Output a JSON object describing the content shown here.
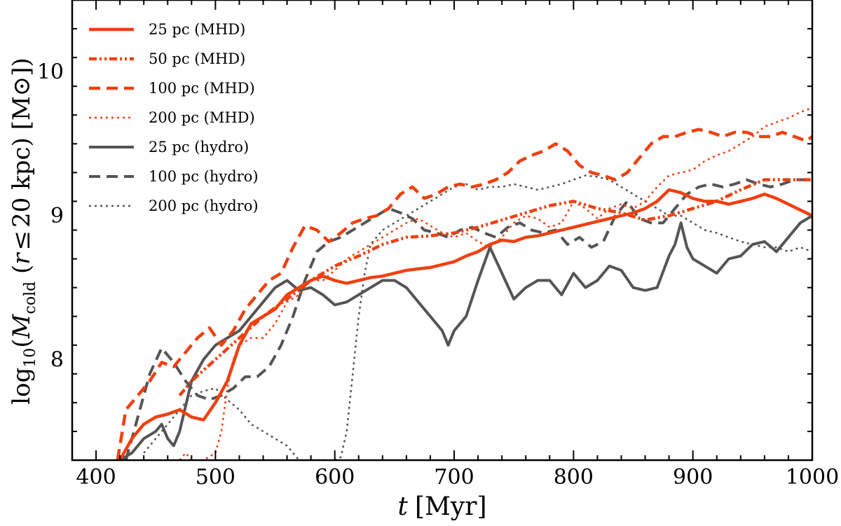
{
  "chart_data": {
    "type": "line",
    "xlabel": "t [Myr]",
    "xlabel_parts": {
      "var": "t",
      "unit": "[Myr]"
    },
    "ylabel": "log10(Mcold (r ≤ 20 kpc) [M⊙])",
    "ylabel_parts": {
      "pre": "log",
      "sub10": "10",
      "open": "(",
      "var": "M",
      "subvar": "cold",
      "mid1": " (",
      "r": "r",
      "le": "≤",
      "mid2": "20 kpc) [M",
      "sun": "⊙",
      "close": "])"
    },
    "xlim": [
      380,
      1000
    ],
    "ylim": [
      7.3,
      10.5
    ],
    "xticks": [
      400,
      500,
      600,
      700,
      800,
      900,
      1000
    ],
    "yticks": [
      8,
      9,
      10
    ],
    "legend_position": "top-left",
    "series": [
      {
        "name": "25 pc (MHD)",
        "color": "#f04010",
        "style": "solid",
        "x": [
          420,
          430,
          440,
          450,
          460,
          470,
          480,
          490,
          500,
          510,
          520,
          530,
          540,
          550,
          560,
          570,
          580,
          590,
          600,
          610,
          620,
          630,
          640,
          650,
          660,
          670,
          680,
          690,
          700,
          710,
          720,
          730,
          740,
          750,
          760,
          770,
          780,
          790,
          800,
          810,
          820,
          830,
          840,
          850,
          860,
          870,
          880,
          890,
          900,
          910,
          920,
          930,
          940,
          950,
          960,
          970,
          980,
          990,
          1000
        ],
        "y": [
          7.3,
          7.45,
          7.55,
          7.6,
          7.62,
          7.65,
          7.6,
          7.58,
          7.7,
          7.85,
          8.1,
          8.25,
          8.3,
          8.35,
          8.45,
          8.5,
          8.55,
          8.58,
          8.55,
          8.53,
          8.55,
          8.57,
          8.58,
          8.6,
          8.62,
          8.63,
          8.64,
          8.66,
          8.68,
          8.72,
          8.75,
          8.8,
          8.83,
          8.82,
          8.85,
          8.86,
          8.88,
          8.9,
          8.92,
          8.94,
          8.96,
          8.98,
          9.0,
          9.02,
          9.05,
          9.1,
          9.18,
          9.16,
          9.12,
          9.1,
          9.1,
          9.08,
          9.1,
          9.12,
          9.15,
          9.12,
          9.08,
          9.04,
          9.0
        ]
      },
      {
        "name": "50 pc (MHD)",
        "color": "#f04010",
        "style": "dashdot",
        "x": [
          470,
          480,
          500,
          520,
          540,
          560,
          580,
          600,
          620,
          640,
          660,
          680,
          700,
          720,
          740,
          760,
          780,
          800,
          820,
          840,
          860,
          880,
          900,
          920,
          940,
          960,
          980,
          1000
        ],
        "y": [
          7.75,
          7.85,
          8.0,
          8.15,
          8.3,
          8.42,
          8.55,
          8.65,
          8.72,
          8.8,
          8.85,
          8.86,
          8.88,
          8.92,
          8.97,
          9.02,
          9.07,
          9.1,
          9.05,
          9.02,
          8.97,
          9.0,
          9.05,
          9.1,
          9.18,
          9.25,
          9.25,
          9.25
        ]
      },
      {
        "name": "100 pc (MHD)",
        "color": "#f04010",
        "style": "dashed",
        "x": [
          418,
          425,
          435,
          445,
          455,
          465,
          475,
          485,
          495,
          505,
          515,
          525,
          535,
          545,
          555,
          565,
          575,
          585,
          595,
          605,
          615,
          625,
          635,
          645,
          655,
          665,
          675,
          685,
          695,
          705,
          715,
          725,
          735,
          745,
          755,
          765,
          775,
          785,
          795,
          805,
          815,
          825,
          835,
          845,
          855,
          865,
          875,
          885,
          895,
          905,
          915,
          925,
          935,
          945,
          955,
          965,
          975,
          985,
          995,
          1000
        ],
        "y": [
          7.3,
          7.65,
          7.75,
          7.85,
          7.98,
          7.95,
          8.05,
          8.15,
          8.22,
          8.1,
          8.2,
          8.35,
          8.45,
          8.55,
          8.6,
          8.78,
          8.93,
          8.9,
          8.82,
          8.88,
          8.95,
          8.98,
          9.0,
          9.05,
          9.15,
          9.2,
          9.12,
          9.15,
          9.2,
          9.22,
          9.2,
          9.22,
          9.25,
          9.3,
          9.38,
          9.42,
          9.45,
          9.5,
          9.45,
          9.35,
          9.3,
          9.28,
          9.25,
          9.3,
          9.4,
          9.5,
          9.55,
          9.55,
          9.58,
          9.6,
          9.58,
          9.55,
          9.58,
          9.58,
          9.55,
          9.55,
          9.58,
          9.55,
          9.52,
          9.55
        ]
      },
      {
        "name": "200 pc (MHD)",
        "color": "#f04010",
        "style": "dotted",
        "x": [
          470,
          475,
          480,
          490,
          500,
          505,
          510,
          515,
          520,
          530,
          540,
          550,
          560,
          570,
          580,
          590,
          600,
          610,
          620,
          630,
          640,
          650,
          660,
          670,
          680,
          690,
          700,
          710,
          720,
          730,
          740,
          750,
          760,
          770,
          780,
          790,
          800,
          810,
          820,
          830,
          840,
          850,
          860,
          870,
          880,
          890,
          900,
          910,
          920,
          930,
          940,
          950,
          960,
          970,
          980,
          990,
          1000
        ],
        "y": [
          7.3,
          7.35,
          7.3,
          7.3,
          7.35,
          7.5,
          7.8,
          8.0,
          8.1,
          8.15,
          8.15,
          8.25,
          8.4,
          8.45,
          8.55,
          8.55,
          8.62,
          8.7,
          8.75,
          8.8,
          8.85,
          8.9,
          8.95,
          8.98,
          8.93,
          8.88,
          8.85,
          8.88,
          8.82,
          8.78,
          8.85,
          8.95,
          9.0,
          8.98,
          8.92,
          8.95,
          9.1,
          9.05,
          8.98,
          9.05,
          9.08,
          9.05,
          9.1,
          9.2,
          9.28,
          9.3,
          9.32,
          9.38,
          9.42,
          9.45,
          9.5,
          9.55,
          9.62,
          9.65,
          9.68,
          9.72,
          9.75
        ]
      },
      {
        "name": "25 pc (hydro)",
        "color": "#555555",
        "style": "solid",
        "x": [
          420,
          430,
          440,
          450,
          455,
          460,
          465,
          470,
          480,
          490,
          500,
          510,
          520,
          530,
          540,
          550,
          560,
          570,
          580,
          590,
          600,
          610,
          620,
          630,
          640,
          650,
          660,
          670,
          680,
          690,
          695,
          700,
          710,
          720,
          730,
          740,
          750,
          760,
          770,
          780,
          790,
          800,
          810,
          820,
          830,
          840,
          850,
          860,
          870,
          880,
          885,
          890,
          895,
          900,
          910,
          920,
          930,
          940,
          950,
          960,
          970,
          980,
          990,
          1000
        ],
        "y": [
          7.3,
          7.35,
          7.45,
          7.5,
          7.55,
          7.45,
          7.4,
          7.5,
          7.85,
          8.0,
          8.1,
          8.15,
          8.2,
          8.3,
          8.4,
          8.5,
          8.55,
          8.48,
          8.5,
          8.45,
          8.38,
          8.4,
          8.45,
          8.5,
          8.55,
          8.55,
          8.5,
          8.4,
          8.3,
          8.2,
          8.1,
          8.2,
          8.3,
          8.55,
          8.78,
          8.6,
          8.42,
          8.5,
          8.55,
          8.55,
          8.45,
          8.6,
          8.5,
          8.55,
          8.65,
          8.62,
          8.5,
          8.48,
          8.5,
          8.72,
          8.8,
          8.95,
          8.78,
          8.7,
          8.65,
          8.6,
          8.7,
          8.72,
          8.8,
          8.82,
          8.75,
          8.85,
          8.95,
          9.0
        ]
      },
      {
        "name": "100 pc (hydro)",
        "color": "#555555",
        "style": "dashed",
        "x": [
          425,
          435,
          445,
          455,
          465,
          475,
          485,
          495,
          505,
          515,
          525,
          535,
          545,
          555,
          565,
          575,
          585,
          595,
          605,
          615,
          625,
          635,
          645,
          655,
          665,
          675,
          685,
          695,
          705,
          715,
          725,
          735,
          745,
          755,
          765,
          775,
          785,
          795,
          805,
          815,
          825,
          835,
          845,
          855,
          865,
          875,
          885,
          895,
          905,
          915,
          925,
          935,
          945,
          955,
          965,
          975,
          985,
          995,
          1000
        ],
        "y": [
          7.3,
          7.6,
          7.9,
          8.08,
          7.98,
          7.85,
          7.75,
          7.72,
          7.75,
          7.8,
          7.88,
          7.88,
          7.95,
          8.1,
          8.3,
          8.55,
          8.75,
          8.82,
          8.85,
          8.9,
          8.95,
          9.0,
          9.05,
          9.02,
          8.98,
          8.9,
          8.88,
          8.85,
          8.9,
          8.92,
          8.88,
          8.85,
          8.92,
          8.95,
          8.9,
          8.88,
          8.9,
          8.8,
          8.85,
          8.78,
          8.82,
          9.0,
          9.1,
          8.98,
          8.95,
          8.95,
          9.05,
          9.15,
          9.2,
          9.22,
          9.2,
          9.22,
          9.25,
          9.22,
          9.2,
          9.22,
          9.25,
          9.25,
          9.28
        ]
      },
      {
        "name": "200 pc (hydro)",
        "color": "#555555",
        "style": "dotted",
        "x": [
          440,
          450,
          460,
          470,
          480,
          490,
          500,
          510,
          520,
          530,
          540,
          550,
          560,
          565,
          570,
          575,
          580,
          585,
          590,
          595,
          600,
          605,
          610,
          615,
          620,
          625,
          630,
          640,
          650,
          660,
          670,
          680,
          690,
          700,
          710,
          720,
          730,
          740,
          750,
          760,
          770,
          780,
          790,
          800,
          810,
          820,
          830,
          840,
          850,
          860,
          870,
          880,
          890,
          900,
          910,
          920,
          930,
          940,
          950,
          960,
          970,
          980,
          990,
          1000
        ],
        "y": [
          7.35,
          7.45,
          7.55,
          7.65,
          7.75,
          7.78,
          7.8,
          7.72,
          7.65,
          7.55,
          7.5,
          7.45,
          7.4,
          7.35,
          7.3,
          7.3,
          7.3,
          7.3,
          7.3,
          7.3,
          7.3,
          7.32,
          7.5,
          7.9,
          8.3,
          8.6,
          8.8,
          8.9,
          8.95,
          9.0,
          9.05,
          9.1,
          9.15,
          9.2,
          9.22,
          9.18,
          9.2,
          9.2,
          9.22,
          9.2,
          9.18,
          9.2,
          9.22,
          9.25,
          9.28,
          9.27,
          9.25,
          9.2,
          9.15,
          9.1,
          9.05,
          9.0,
          9.0,
          8.95,
          8.9,
          8.88,
          8.85,
          8.82,
          8.8,
          8.78,
          8.78,
          8.75,
          8.78,
          8.75
        ]
      }
    ]
  }
}
